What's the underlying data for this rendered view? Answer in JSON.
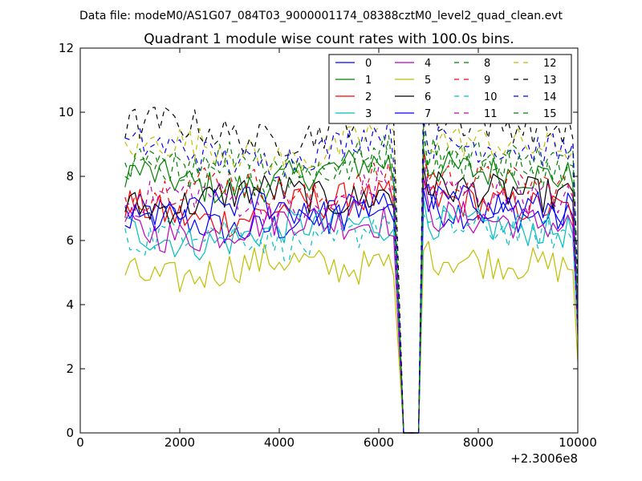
{
  "figure": {
    "suptitle": "Data file: modeM0/AS1G07_084T03_9000001174_08388cztM0_level2_quad_clean.evt"
  },
  "chart_data": {
    "type": "line",
    "title": "Quadrant 1 module wise count rates with 100.0s bins.",
    "xlabel": "",
    "ylabel": "",
    "xlim": [
      0,
      10000
    ],
    "ylim": [
      0,
      12
    ],
    "x_offset_label": "+2.3006e8",
    "xticks": [
      0,
      2000,
      4000,
      6000,
      8000,
      10000
    ],
    "xtick_labels": [
      "0",
      "2000",
      "4000",
      "6000",
      "8000",
      "10000"
    ],
    "yticks": [
      0,
      2,
      4,
      6,
      8,
      10,
      12
    ],
    "ytick_labels": [
      "0",
      "2",
      "4",
      "6",
      "8",
      "10",
      "12"
    ],
    "legend_position": "top-right",
    "x": {
      "start": 900,
      "step": 100,
      "gap_start": 6300,
      "gap_zero_start": 6500,
      "gap_zero_end": 6800,
      "resume": 6900,
      "end": 10000
    },
    "series": [
      {
        "name": "0",
        "color": "#0000ff",
        "dash": "solid",
        "base": 6.6,
        "end_value": 3.6
      },
      {
        "name": "1",
        "color": "#008000",
        "dash": "solid",
        "base": 7.9,
        "end_value": 3.2
      },
      {
        "name": "2",
        "color": "#ff0000",
        "dash": "solid",
        "base": 6.9,
        "end_value": 3.4
      },
      {
        "name": "3",
        "color": "#00bfbf",
        "dash": "solid",
        "base": 6.2,
        "end_value": 3.0
      },
      {
        "name": "4",
        "color": "#bf00bf",
        "dash": "solid",
        "base": 6.4,
        "end_value": 3.1
      },
      {
        "name": "5",
        "color": "#bfbf00",
        "dash": "solid",
        "base": 5.1,
        "end_value": 2.2
      },
      {
        "name": "6",
        "color": "#000000",
        "dash": "solid",
        "base": 7.3,
        "end_value": 3.3
      },
      {
        "name": "7",
        "color": "#0000ff",
        "dash": "solid",
        "base": 6.9,
        "end_value": 3.5
      },
      {
        "name": "8",
        "color": "#008000",
        "dash": "dashed",
        "base": 8.4,
        "end_value": 4.0
      },
      {
        "name": "9",
        "color": "#ff0000",
        "dash": "dashed",
        "base": 7.6,
        "end_value": 3.8
      },
      {
        "name": "10",
        "color": "#00bfbf",
        "dash": "dashed",
        "base": 6.1,
        "end_value": 3.3
      },
      {
        "name": "11",
        "color": "#bf00bf",
        "dash": "dashed",
        "base": 7.2,
        "end_value": 3.6
      },
      {
        "name": "12",
        "color": "#bfbf00",
        "dash": "dashed",
        "base": 8.8,
        "end_value": 4.4
      },
      {
        "name": "13",
        "color": "#000000",
        "dash": "dashed",
        "base": 9.4,
        "end_value": 4.6
      },
      {
        "name": "14",
        "color": "#0000ff",
        "dash": "dashed",
        "base": 8.7,
        "end_value": 4.2
      },
      {
        "name": "15",
        "color": "#008000",
        "dash": "dashed",
        "base": 8.1,
        "end_value": 3.9
      }
    ]
  }
}
